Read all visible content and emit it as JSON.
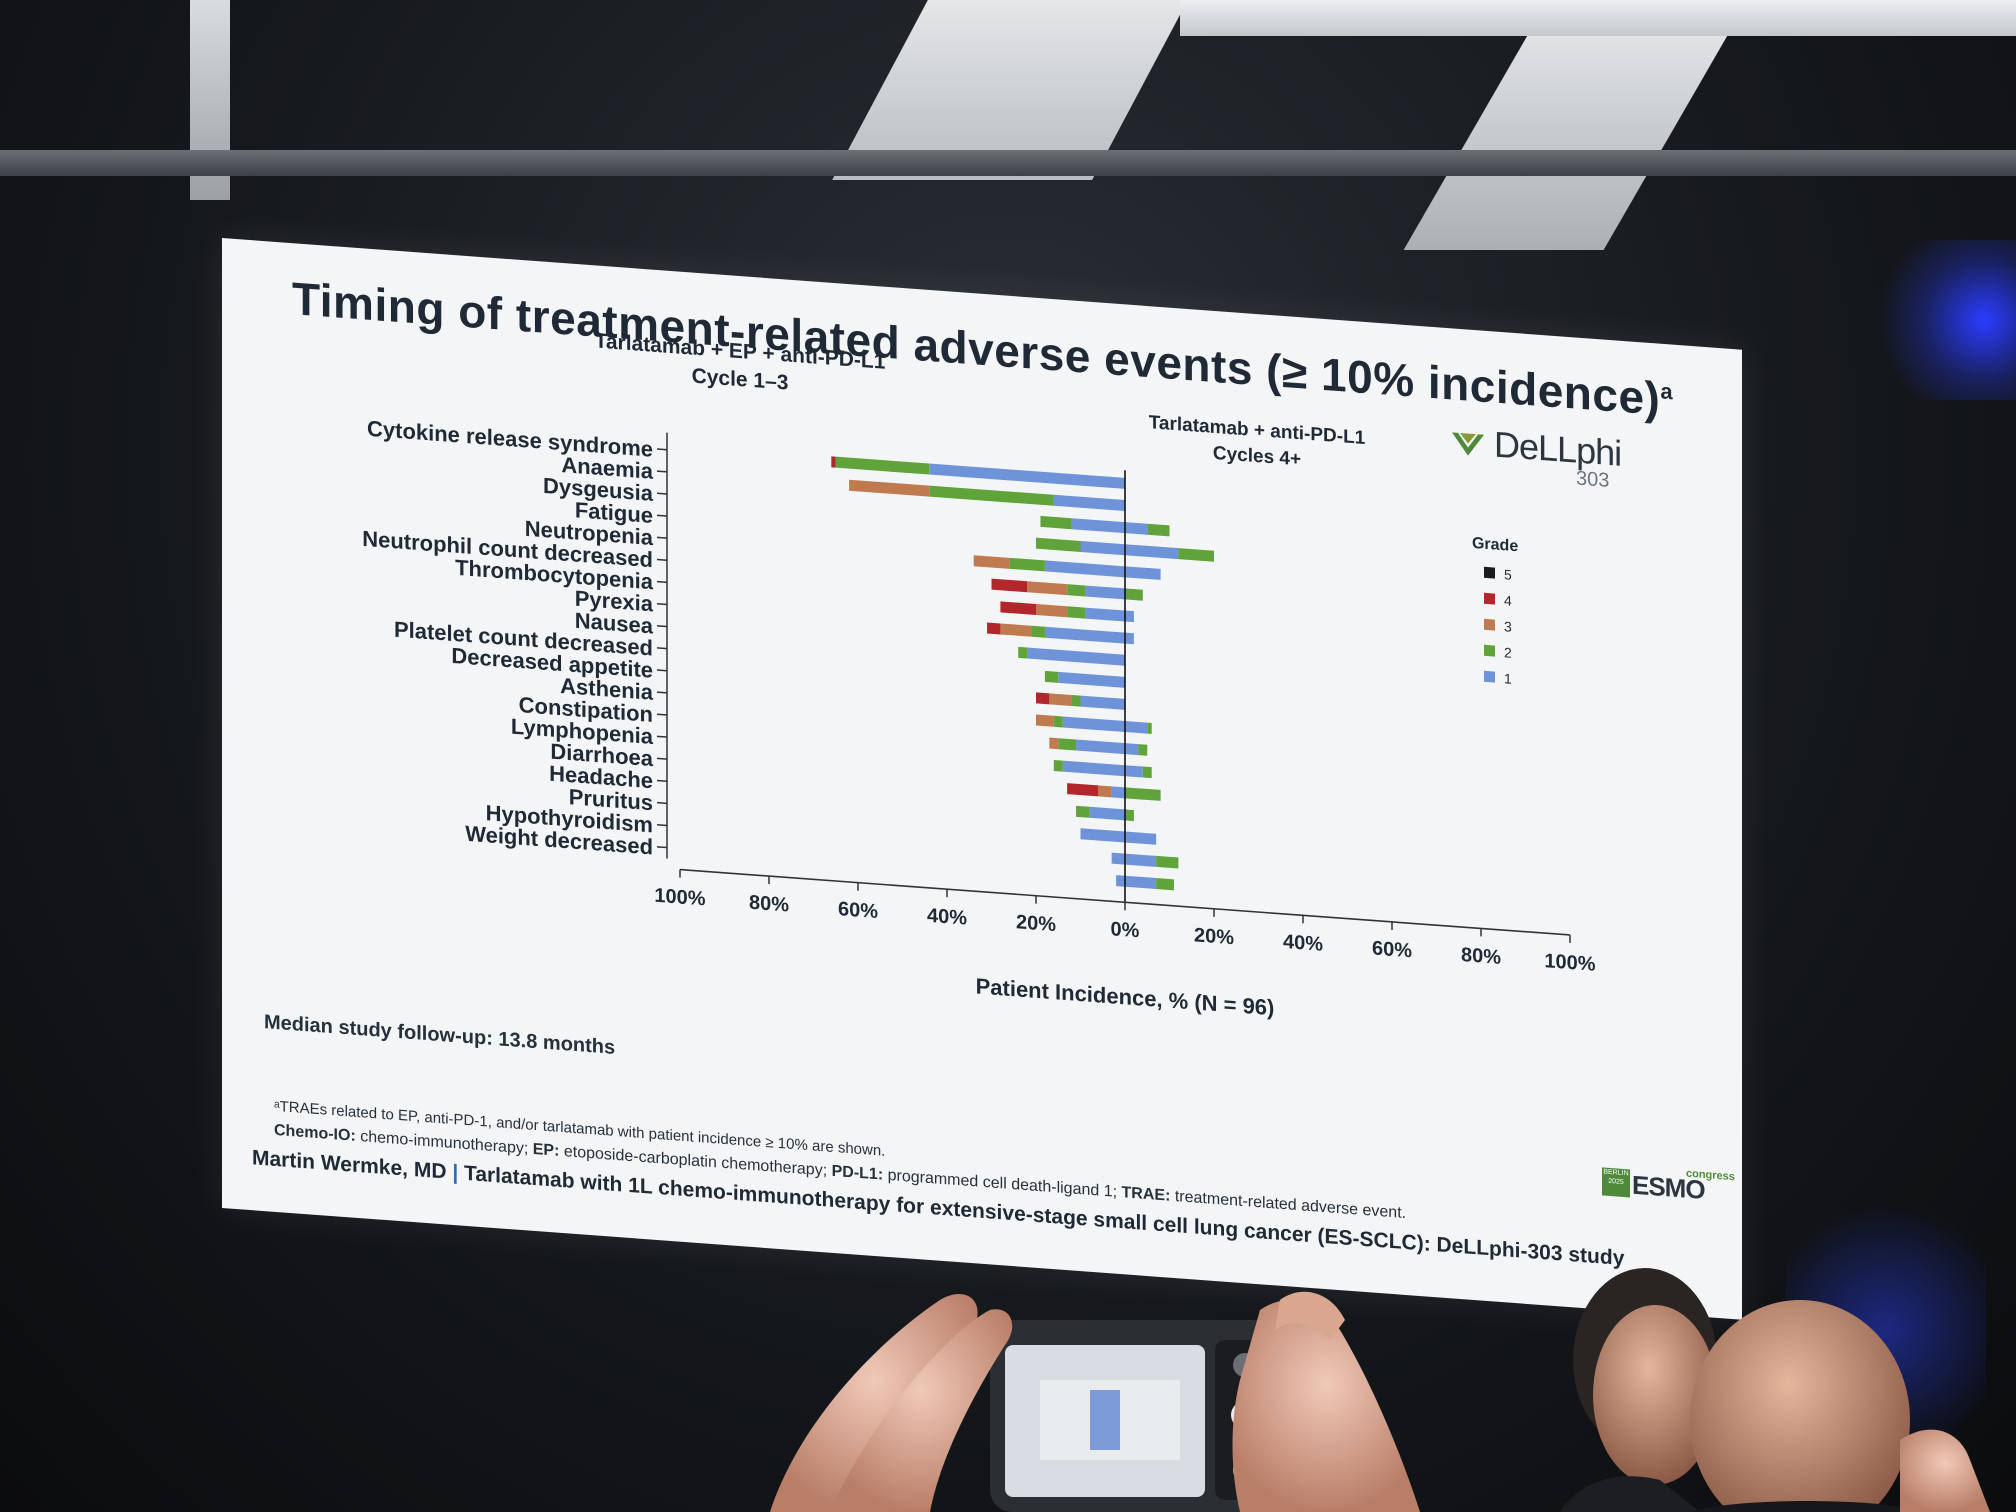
{
  "slide": {
    "title": "Timing of treatment-related adverse events (≥ 10% incidence)",
    "title_superscript": "a",
    "logo_name": "DeLLphi",
    "logo_number": "303",
    "median_followup": "Median study follow-up: 13.8 months",
    "footnote_1": "ᵃTRAEs related to EP, anti-PD-1, and/or tarlatamab with patient incidence ≥ 10% are shown.",
    "footnote_2_label_a": "Chemo-IO:",
    "footnote_2_text_a": " chemo-immunotherapy; ",
    "footnote_2_label_b": "EP:",
    "footnote_2_text_b": " etoposide-carboplatin chemotherapy; ",
    "footnote_2_label_c": "PD-L1:",
    "footnote_2_text_c": " programmed cell death-ligand 1; ",
    "footnote_2_label_d": "TRAE:",
    "footnote_2_text_d": " treatment-related adverse event.",
    "footnote_3": "chemo-immunotherapy for extensive-stage small cell lung cancer (ES-SCLC): DeLLphi-303 study",
    "presenter_name": "Martin Wermke, MD",
    "presenter_separator": " | ",
    "presenter_talk": "Tarlatamab with 1L chemo-immunotherapy for extensive-stage small cell lung cancer (ES-SCLC): DeLLphi-303 study",
    "esmo_city": "BERLIN 2025",
    "esmo_name": "ESMO",
    "esmo_congress": "congress"
  },
  "colors": {
    "grade5": "#1b1b1b",
    "grade4": "#b3262b",
    "grade3": "#c07a4f",
    "grade2": "#5fa33a",
    "grade1": "#6f93d8",
    "text": "#1f2a36"
  },
  "chart_data": {
    "type": "bar",
    "orientation": "horizontal-diverging",
    "left_panel_title_1": "Tarlatamab + EP + anti-PD-L1",
    "left_panel_title_2": "Cycle 1–3",
    "right_panel_title_1": "Tarlatamab + anti-PD-L1",
    "right_panel_title_2": "Cycles 4+",
    "xlabel": "Patient Incidence, % (N = 96)",
    "xlim": [
      -100,
      100
    ],
    "tick_labels": [
      "100%",
      "80%",
      "60%",
      "40%",
      "20%",
      "0%",
      "20%",
      "40%",
      "60%",
      "80%",
      "100%"
    ],
    "tick_values": [
      -100,
      -80,
      -60,
      -40,
      -20,
      0,
      20,
      40,
      60,
      80,
      100
    ],
    "legend_title": "Grade",
    "legend": [
      "5",
      "4",
      "3",
      "2",
      "1"
    ],
    "legend_position": "right",
    "categories": [
      "Cytokine release syndrome",
      "Anaemia",
      "Dysgeusia",
      "Fatigue",
      "Neutropenia",
      "Neutrophil count decreased",
      "Thrombocytopenia",
      "Pyrexia",
      "Nausea",
      "Platelet count decreased",
      "Decreased appetite",
      "Asthenia",
      "Constipation",
      "Lymphopenia",
      "Diarrhoea",
      "Headache",
      "Pruritus",
      "Hypothyroidism",
      "Weight decreased"
    ],
    "cycle_1_3": {
      "grade5": [
        0,
        0,
        0,
        0,
        0,
        0,
        0,
        0,
        0,
        0,
        0,
        0,
        0,
        0,
        0,
        0,
        0,
        0,
        0
      ],
      "grade4": [
        1,
        0,
        0,
        0,
        0,
        8,
        8,
        3,
        0,
        0,
        3,
        0,
        0,
        0,
        7,
        0,
        0,
        0,
        0
      ],
      "grade3": [
        0,
        18,
        0,
        0,
        8,
        9,
        7,
        7,
        0,
        0,
        5,
        4,
        2,
        0,
        3,
        0,
        0,
        0,
        0
      ],
      "grade2": [
        21,
        28,
        7,
        10,
        8,
        4,
        4,
        3,
        2,
        3,
        2,
        2,
        4,
        2,
        0,
        3,
        0,
        0,
        0
      ],
      "grade1": [
        44,
        16,
        12,
        10,
        18,
        9,
        9,
        18,
        22,
        15,
        10,
        14,
        11,
        14,
        3,
        8,
        10,
        3,
        2
      ]
    },
    "cycles_4_plus": {
      "grade5": [
        0,
        0,
        0,
        0,
        0,
        0,
        0,
        0,
        0,
        0,
        0,
        0,
        0,
        0,
        0,
        0,
        0,
        0,
        0
      ],
      "grade4": [
        0,
        0,
        0,
        0,
        0,
        0,
        0,
        0,
        0,
        0,
        0,
        0,
        0,
        0,
        0,
        0,
        0,
        0,
        0
      ],
      "grade3": [
        0,
        0,
        0,
        0,
        0,
        0,
        0,
        0,
        0,
        0,
        0,
        0,
        0,
        0,
        0,
        0,
        0,
        0,
        0
      ],
      "grade2": [
        0,
        0,
        5,
        8,
        0,
        4,
        0,
        0,
        0,
        0,
        0,
        1,
        2,
        2,
        8,
        2,
        0,
        5,
        4
      ],
      "grade1": [
        0,
        0,
        5,
        12,
        8,
        0,
        2,
        2,
        0,
        0,
        0,
        5,
        3,
        4,
        0,
        0,
        7,
        7,
        7
      ]
    }
  }
}
